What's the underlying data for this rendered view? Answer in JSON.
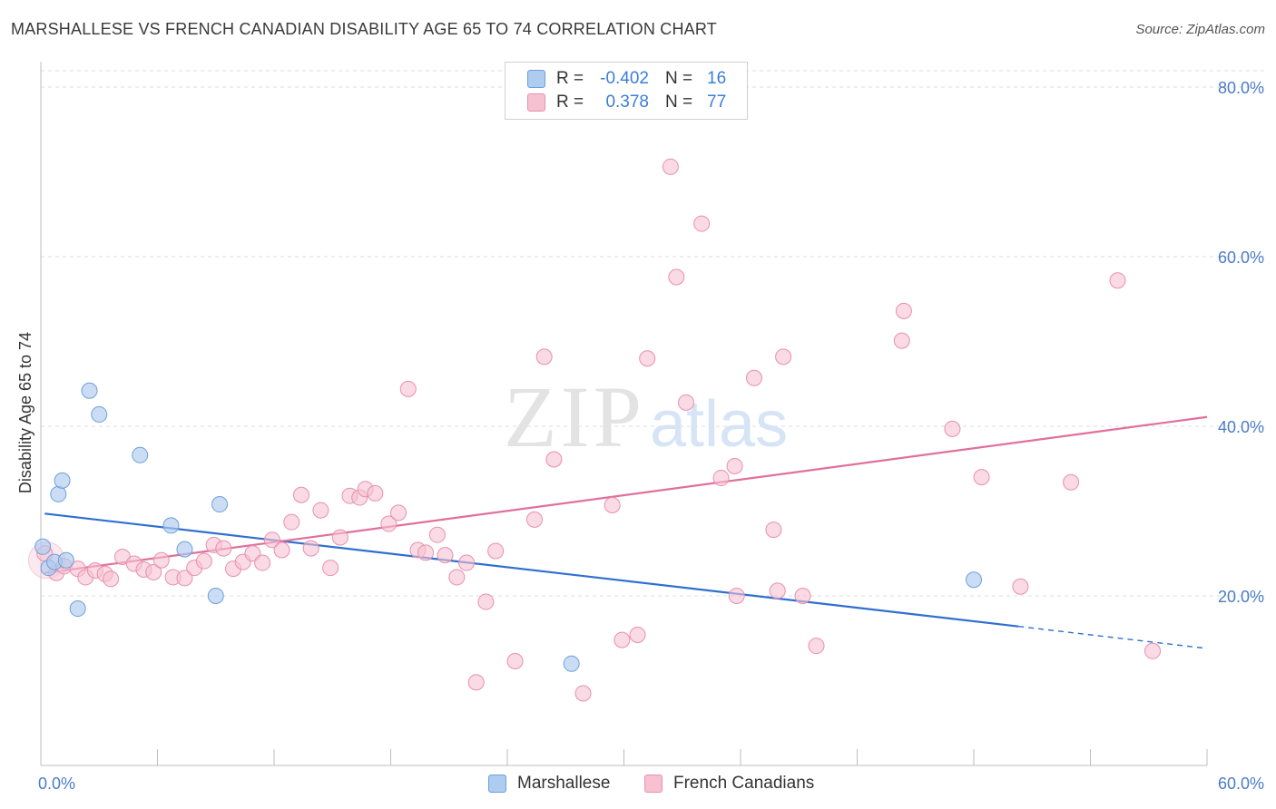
{
  "title": "MARSHALLESE VS FRENCH CANADIAN DISABILITY AGE 65 TO 74 CORRELATION CHART",
  "source": "Source: ZipAtlas.com",
  "watermark": {
    "zip": "ZIP",
    "atlas": "atlas"
  },
  "legend": {
    "rows": [
      {
        "r_label": "R =",
        "r_value": "-0.402",
        "n_label": "N =",
        "n_value": "16"
      },
      {
        "r_label": "R =",
        "r_value": "0.378",
        "n_label": "N =",
        "n_value": "77"
      }
    ]
  },
  "bottom_legend": {
    "series1": "Marshallese",
    "series2": "French Canadians"
  },
  "colors": {
    "marshallese_fill": "#aecbf0",
    "marshallese_stroke": "#6f9fd8",
    "marshallese_line": "#2f6fcf",
    "french_fill": "#f7c1d2",
    "french_stroke": "#e890ad",
    "french_line": "#e0709a",
    "tick_text": "#4a7cc9"
  },
  "chart_data": {
    "type": "scatter",
    "title": "MARSHALLESE VS FRENCH CANADIAN DISABILITY AGE 65 TO 74 CORRELATION CHART",
    "xlabel": "",
    "ylabel": "Disability Age 65 to 74",
    "xlim": [
      0,
      60
    ],
    "ylim": [
      0,
      83
    ],
    "x_ticks": [
      0,
      6,
      12,
      18,
      24,
      30,
      36,
      42,
      48,
      54,
      60
    ],
    "x_tick_labels": {
      "0": "0.0%",
      "60": "60.0%"
    },
    "y_ticks": [
      20,
      40,
      60,
      80
    ],
    "y_tick_labels": [
      "20.0%",
      "40.0%",
      "60.0%",
      "80.0%"
    ],
    "grid": true,
    "series": [
      {
        "name": "Marshallese",
        "R": -0.402,
        "N": 16,
        "points": [
          [
            0.1,
            25.8
          ],
          [
            0.4,
            23.3
          ],
          [
            0.7,
            24.0
          ],
          [
            0.9,
            32.0
          ],
          [
            1.1,
            33.6
          ],
          [
            1.3,
            24.2
          ],
          [
            1.9,
            18.5
          ],
          [
            2.5,
            44.2
          ],
          [
            3.0,
            41.4
          ],
          [
            5.1,
            36.6
          ],
          [
            6.7,
            28.3
          ],
          [
            7.4,
            25.5
          ],
          [
            9.0,
            20.0
          ],
          [
            9.2,
            30.8
          ],
          [
            27.3,
            12.0
          ],
          [
            48.0,
            21.9
          ]
        ],
        "trend": {
          "x_start": 0.2,
          "y_start": 29.7,
          "x_solid_end": 50.3,
          "y_solid_end": 16.4,
          "x_end": 60,
          "y_end": 13.8
        }
      },
      {
        "name": "French Canadians",
        "R": 0.378,
        "N": 77,
        "points": [
          [
            0.2,
            25.0
          ],
          [
            0.8,
            22.7
          ],
          [
            1.2,
            23.5
          ],
          [
            1.9,
            23.2
          ],
          [
            2.3,
            22.2
          ],
          [
            2.8,
            23.0
          ],
          [
            3.3,
            22.6
          ],
          [
            3.6,
            22.0
          ],
          [
            4.2,
            24.6
          ],
          [
            4.8,
            23.8
          ],
          [
            5.3,
            23.1
          ],
          [
            5.8,
            22.8
          ],
          [
            6.2,
            24.2
          ],
          [
            6.8,
            22.2
          ],
          [
            7.4,
            22.1
          ],
          [
            7.9,
            23.3
          ],
          [
            8.4,
            24.1
          ],
          [
            8.9,
            26.0
          ],
          [
            9.4,
            25.6
          ],
          [
            9.9,
            23.2
          ],
          [
            10.4,
            24.0
          ],
          [
            10.9,
            25.0
          ],
          [
            11.4,
            23.9
          ],
          [
            11.9,
            26.6
          ],
          [
            12.4,
            25.4
          ],
          [
            12.9,
            28.7
          ],
          [
            13.4,
            31.9
          ],
          [
            13.9,
            25.6
          ],
          [
            14.4,
            30.1
          ],
          [
            14.9,
            23.3
          ],
          [
            15.4,
            26.9
          ],
          [
            15.9,
            31.8
          ],
          [
            16.4,
            31.6
          ],
          [
            16.7,
            32.6
          ],
          [
            17.2,
            32.1
          ],
          [
            17.9,
            28.5
          ],
          [
            18.4,
            29.8
          ],
          [
            18.9,
            44.4
          ],
          [
            19.4,
            25.4
          ],
          [
            19.8,
            25.1
          ],
          [
            20.4,
            27.2
          ],
          [
            20.8,
            24.8
          ],
          [
            21.4,
            22.2
          ],
          [
            21.9,
            23.9
          ],
          [
            22.4,
            9.8
          ],
          [
            22.9,
            19.3
          ],
          [
            23.4,
            25.3
          ],
          [
            24.4,
            12.3
          ],
          [
            25.4,
            29.0
          ],
          [
            25.9,
            48.2
          ],
          [
            26.4,
            36.1
          ],
          [
            27.9,
            8.5
          ],
          [
            29.4,
            30.7
          ],
          [
            29.9,
            14.8
          ],
          [
            30.7,
            15.4
          ],
          [
            31.2,
            48.0
          ],
          [
            32.4,
            70.6
          ],
          [
            32.7,
            57.6
          ],
          [
            33.2,
            42.8
          ],
          [
            34.0,
            63.9
          ],
          [
            35.0,
            33.9
          ],
          [
            35.8,
            20.0
          ],
          [
            35.7,
            35.3
          ],
          [
            36.7,
            45.7
          ],
          [
            37.7,
            27.8
          ],
          [
            37.9,
            20.6
          ],
          [
            38.2,
            48.2
          ],
          [
            39.2,
            20.0
          ],
          [
            39.9,
            14.1
          ],
          [
            44.3,
            50.1
          ],
          [
            44.4,
            53.6
          ],
          [
            46.9,
            39.7
          ],
          [
            48.4,
            34.0
          ],
          [
            50.4,
            21.1
          ],
          [
            53.0,
            33.4
          ],
          [
            55.4,
            57.2
          ],
          [
            57.2,
            13.5
          ]
        ],
        "trend": {
          "x_start": 0.2,
          "y_start": 22.7,
          "x_end": 60,
          "y_end": 41.1
        }
      }
    ]
  }
}
